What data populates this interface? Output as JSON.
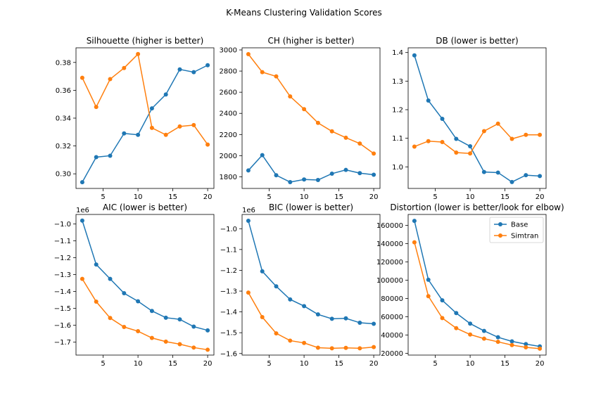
{
  "figure": {
    "suptitle": "K-Means Clustering Validation Scores"
  },
  "colors": {
    "Base": "#1f77b4",
    "Simtran": "#ff7f0e"
  },
  "chart_data": [
    {
      "type": "line",
      "title": "Silhouette (higher is better)",
      "xlabel": "",
      "ylabel": "",
      "x": [
        2,
        4,
        6,
        8,
        10,
        12,
        14,
        16,
        18,
        20
      ],
      "xticks": [
        5,
        10,
        15,
        20
      ],
      "xlim": [
        1.1,
        20.9
      ],
      "yticks": [
        0.3,
        0.32,
        0.34,
        0.36,
        0.38
      ],
      "ytick_labels": [
        "0.30",
        "0.32",
        "0.34",
        "0.36",
        "0.38"
      ],
      "ylim": [
        0.2895,
        0.3905
      ],
      "offset_text": "",
      "series": [
        {
          "name": "Base",
          "values": [
            0.294,
            0.312,
            0.313,
            0.329,
            0.328,
            0.347,
            0.357,
            0.375,
            0.373,
            0.378
          ]
        },
        {
          "name": "Simtran",
          "values": [
            0.369,
            0.348,
            0.368,
            0.376,
            0.386,
            0.333,
            0.328,
            0.334,
            0.335,
            0.321
          ]
        }
      ]
    },
    {
      "type": "line",
      "title": "CH (higher is better)",
      "xlabel": "",
      "ylabel": "",
      "x": [
        2,
        4,
        6,
        8,
        10,
        12,
        14,
        16,
        18,
        20
      ],
      "xticks": [
        5,
        10,
        15,
        20
      ],
      "xlim": [
        1.1,
        20.9
      ],
      "yticks": [
        1800,
        2000,
        2200,
        2400,
        2600,
        2800,
        3000
      ],
      "ytick_labels": [
        "1800",
        "2000",
        "2200",
        "2400",
        "2600",
        "2800",
        "3000"
      ],
      "ylim": [
        1690,
        3020
      ],
      "offset_text": "",
      "series": [
        {
          "name": "Base",
          "values": [
            1860,
            2005,
            1815,
            1750,
            1775,
            1770,
            1830,
            1865,
            1835,
            1820
          ]
        },
        {
          "name": "Simtran",
          "values": [
            2960,
            2790,
            2750,
            2560,
            2440,
            2310,
            2230,
            2170,
            2115,
            2020
          ]
        }
      ]
    },
    {
      "type": "line",
      "title": "DB (lower is better)",
      "xlabel": "",
      "ylabel": "",
      "x": [
        2,
        4,
        6,
        8,
        10,
        12,
        14,
        16,
        18,
        20
      ],
      "xticks": [
        5,
        10,
        15,
        20
      ],
      "xlim": [
        1.1,
        20.9
      ],
      "yticks": [
        1.0,
        1.1,
        1.2,
        1.3,
        1.4
      ],
      "ytick_labels": [
        "1.0",
        "1.1",
        "1.2",
        "1.3",
        "1.4"
      ],
      "ylim": [
        0.9245,
        1.4165
      ],
      "offset_text": "",
      "series": [
        {
          "name": "Base",
          "values": [
            1.39,
            1.232,
            1.168,
            1.098,
            1.072,
            0.982,
            0.98,
            0.947,
            0.971,
            0.968
          ]
        },
        {
          "name": "Simtran",
          "values": [
            1.071,
            1.09,
            1.087,
            1.05,
            1.047,
            1.125,
            1.151,
            1.098,
            1.112,
            1.112
          ]
        }
      ]
    },
    {
      "type": "line",
      "title": "AIC (lower is better)",
      "xlabel": "",
      "ylabel": "",
      "x": [
        2,
        4,
        6,
        8,
        10,
        12,
        14,
        16,
        18,
        20
      ],
      "xticks": [
        5,
        10,
        15,
        20
      ],
      "xlim": [
        1.1,
        20.9
      ],
      "yticks": [
        -1.7,
        -1.6,
        -1.5,
        -1.4,
        -1.3,
        -1.2,
        -1.1,
        -1.0
      ],
      "ytick_labels": [
        "−1.7",
        "−1.6",
        "−1.5",
        "−1.4",
        "−1.3",
        "−1.2",
        "−1.1",
        "−1.0"
      ],
      "ylim": [
        -1.7765,
        -0.9435
      ],
      "offset_text": "1e6",
      "series": [
        {
          "name": "Base",
          "values": [
            -0.98,
            -1.24,
            -1.325,
            -1.41,
            -1.458,
            -1.515,
            -1.555,
            -1.565,
            -1.608,
            -1.63
          ]
        },
        {
          "name": "Simtran",
          "values": [
            -1.325,
            -1.46,
            -1.557,
            -1.61,
            -1.635,
            -1.675,
            -1.697,
            -1.712,
            -1.732,
            -1.745
          ]
        }
      ]
    },
    {
      "type": "line",
      "title": "BIC (lower is better)",
      "xlabel": "",
      "ylabel": "",
      "x": [
        2,
        4,
        6,
        8,
        10,
        12,
        14,
        16,
        18,
        20
      ],
      "xticks": [
        5,
        10,
        15,
        20
      ],
      "xlim": [
        1.1,
        20.9
      ],
      "yticks": [
        -1.6,
        -1.5,
        -1.4,
        -1.3,
        -1.2,
        -1.1,
        -1.0
      ],
      "ytick_labels": [
        "−1.6",
        "−1.5",
        "−1.4",
        "−1.3",
        "−1.2",
        "−1.1",
        "−1.0"
      ],
      "ylim": [
        -1.6075,
        -0.9315
      ],
      "offset_text": "1e6",
      "series": [
        {
          "name": "Base",
          "values": [
            -0.962,
            -1.205,
            -1.277,
            -1.34,
            -1.372,
            -1.412,
            -1.433,
            -1.431,
            -1.452,
            -1.457
          ]
        },
        {
          "name": "Simtran",
          "values": [
            -1.307,
            -1.425,
            -1.503,
            -1.538,
            -1.549,
            -1.572,
            -1.575,
            -1.573,
            -1.575,
            -1.569
          ]
        }
      ]
    },
    {
      "type": "line",
      "title": "Distortion (lower is better/look for elbow)",
      "xlabel": "",
      "ylabel": "",
      "x": [
        2,
        4,
        6,
        8,
        10,
        12,
        14,
        16,
        18,
        20
      ],
      "xticks": [
        5,
        10,
        15,
        20
      ],
      "xlim": [
        1.1,
        20.9
      ],
      "yticks": [
        20000,
        40000,
        60000,
        80000,
        100000,
        120000,
        140000,
        160000
      ],
      "ytick_labels": [
        "20000",
        "40000",
        "60000",
        "80000",
        "100000",
        "120000",
        "140000",
        "160000"
      ],
      "ylim": [
        18000,
        172000
      ],
      "offset_text": "",
      "legend": {
        "loc": "upper right",
        "entries": [
          "Base",
          "Simtran"
        ]
      },
      "series": [
        {
          "name": "Base",
          "values": [
            165000,
            100500,
            78000,
            64000,
            52500,
            44500,
            37500,
            33000,
            30000,
            27500
          ]
        },
        {
          "name": "Simtran",
          "values": [
            141500,
            82500,
            58500,
            47500,
            40500,
            36000,
            32500,
            29000,
            26500,
            25000
          ]
        }
      ]
    }
  ]
}
